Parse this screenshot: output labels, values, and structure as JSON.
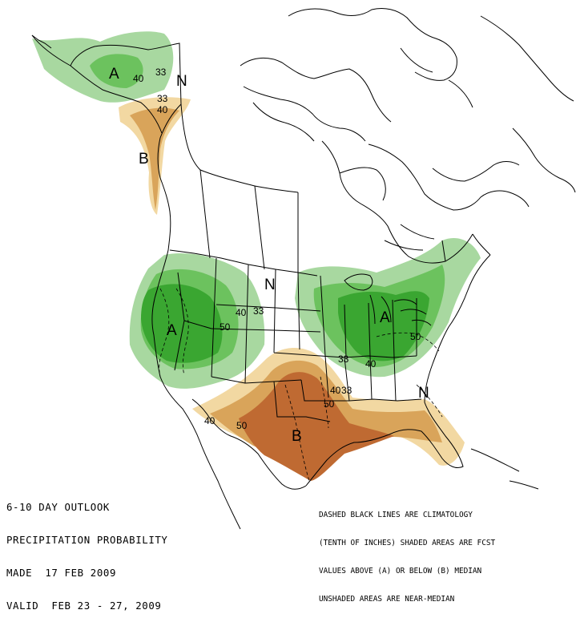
{
  "title": {
    "line1": "6-10 DAY OUTLOOK",
    "line2": "PRECIPITATION PROBABILITY",
    "line3": "MADE  17 FEB 2009",
    "line4": "VALID  FEB 23 - 27, 2009"
  },
  "legend": {
    "line1": "DASHED BLACK LINES ARE CLIMATOLOGY",
    "line2": "(TENTH OF INCHES) SHADED AREAS ARE FCST",
    "line3": "VALUES ABOVE (A) OR BELOW (B) MEDIAN",
    "line4": "UNSHADED AREAS ARE NEAR-MEDIAN"
  },
  "colors": {
    "above_33": "#a8d8a0",
    "above_40": "#6cc25e",
    "above_50": "#3aa631",
    "below_33": "#f2d8a2",
    "below_40": "#d9a45a",
    "below_50": "#bf6a32",
    "land_lines": "#000000"
  },
  "category_labels": {
    "alaska_above": "A",
    "alaska_near": "N",
    "panhandle_below": "B",
    "west_above": "A",
    "central_near": "N",
    "greatlakes_above": "A",
    "south_below": "B",
    "southeast_near": "N"
  },
  "contour_labels": {
    "ak_40": "40",
    "ak_33": "33",
    "pan_33": "33",
    "pan_40": "40",
    "west_40": "40",
    "west_33": "33",
    "west_50": "50",
    "gl_50": "50",
    "gl_33": "33",
    "gl_40": "40",
    "tx_40": "40",
    "tx_33": "33",
    "tx_50a": "50",
    "tx_40b": "40",
    "tx_50b": "50"
  }
}
